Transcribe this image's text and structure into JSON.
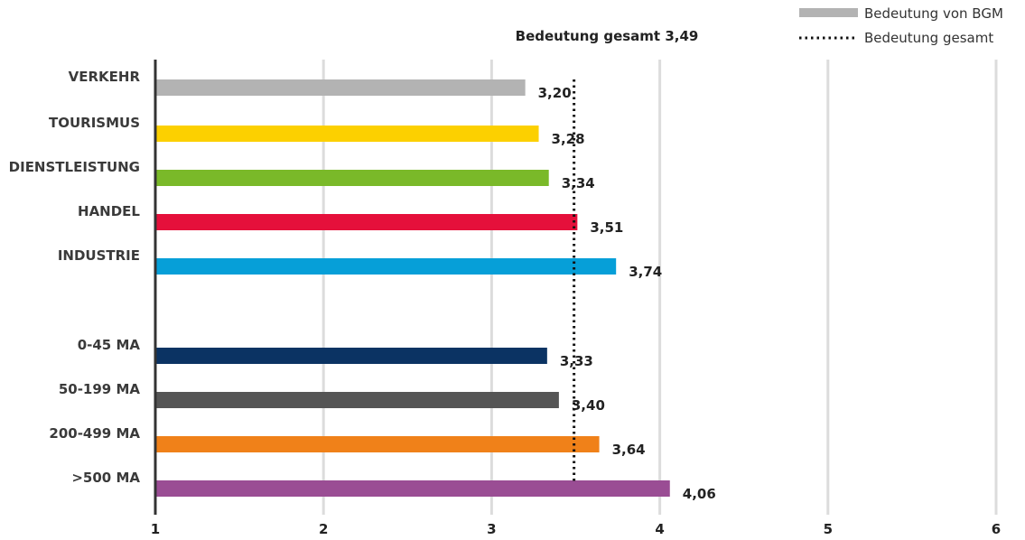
{
  "chart_data": {
    "type": "bar",
    "orientation": "horizontal",
    "title": "Bedeutung gesamt 3,49",
    "xlim": [
      1,
      6
    ],
    "x_ticks": [
      "1",
      "2",
      "3",
      "4",
      "5",
      "6"
    ],
    "grid": true,
    "legend_position": "top-right",
    "legend": [
      {
        "label": "Bedeutung von BGM",
        "style": "bar",
        "color": "#b3b3b3"
      },
      {
        "label": "Bedeutung gesamt",
        "style": "dotted-line",
        "color": "#111111"
      }
    ],
    "reference_line": {
      "label": "Bedeutung gesamt",
      "value": 3.49
    },
    "categories": [
      {
        "label": "VERKEHR",
        "value": 3.2,
        "value_label": "3,20",
        "color": "#b3b3b3"
      },
      {
        "label": "TOURISMUS",
        "value": 3.28,
        "value_label": "3,28",
        "color": "#fcd000"
      },
      {
        "label": "DIENSTLEISTUNG",
        "value": 3.34,
        "value_label": "3,34",
        "color": "#7ab929"
      },
      {
        "label": "HANDEL",
        "value": 3.51,
        "value_label": "3,51",
        "color": "#e5103b"
      },
      {
        "label": "INDUSTRIE",
        "value": 3.74,
        "value_label": "3,74",
        "color": "#069fd8"
      },
      {
        "label": "0-45 MA",
        "value": 3.33,
        "value_label": "3,33",
        "color": "#0b3363"
      },
      {
        "label": "50-199 MA",
        "value": 3.4,
        "value_label": "3,40",
        "color": "#555555"
      },
      {
        "label": "200-499 MA",
        "value": 3.64,
        "value_label": "3,64",
        "color": "#f08119"
      },
      {
        "label": ">500 MA",
        "value": 4.06,
        "value_label": "4,06",
        "color": "#9a4d94"
      }
    ]
  }
}
